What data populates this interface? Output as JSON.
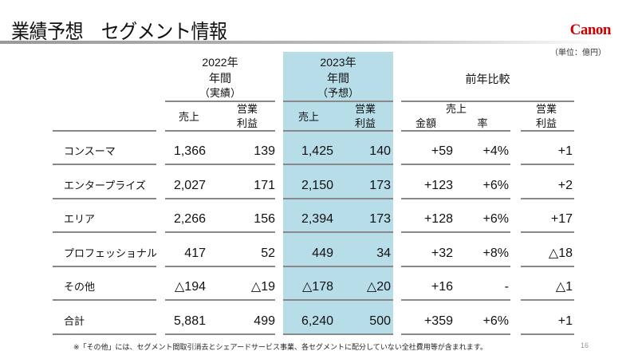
{
  "title": "業績予想　セグメント情報",
  "logo": "Canon",
  "unit": "（単位：億円）",
  "headers": {
    "y2022": [
      "2022年",
      "年間",
      "（実績）"
    ],
    "y2023": [
      "2023年",
      "年間",
      "（予想）"
    ],
    "yoy": "前年比較",
    "sales": "売上",
    "op": [
      "営業",
      "利益"
    ],
    "amount": "金額",
    "rate": "率"
  },
  "rows": [
    {
      "label": "コンスーマ",
      "s22": "1,366",
      "o22": "139",
      "s23": "1,425",
      "o23": "140",
      "ds": "+59",
      "dr": "+4%",
      "do": "+1"
    },
    {
      "label": "エンタープライズ",
      "s22": "2,027",
      "o22": "171",
      "s23": "2,150",
      "o23": "173",
      "ds": "+123",
      "dr": "+6%",
      "do": "+2"
    },
    {
      "label": "エリア",
      "s22": "2,266",
      "o22": "156",
      "s23": "2,394",
      "o23": "173",
      "ds": "+128",
      "dr": "+6%",
      "do": "+17"
    },
    {
      "label": "プロフェッショナル",
      "s22": "417",
      "o22": "52",
      "s23": "449",
      "o23": "34",
      "ds": "+32",
      "dr": "+8%",
      "do": "△18"
    },
    {
      "label": "その他",
      "s22": "△194",
      "o22": "△19",
      "s23": "△178",
      "o23": "△20",
      "ds": "+16",
      "dr": "-",
      "do": "△1"
    },
    {
      "label": "合計",
      "s22": "5,881",
      "o22": "499",
      "s23": "6,240",
      "o23": "500",
      "ds": "+359",
      "dr": "+6%",
      "do": "+1"
    }
  ],
  "footnote": "※「その他」には、セグメント間取引消去とシェアードサービス事業、各セグメントに配分していない全社費用等が含まれます。",
  "page": "16",
  "colors": {
    "highlight": "#b7dde8",
    "logo": "#cc0000"
  }
}
